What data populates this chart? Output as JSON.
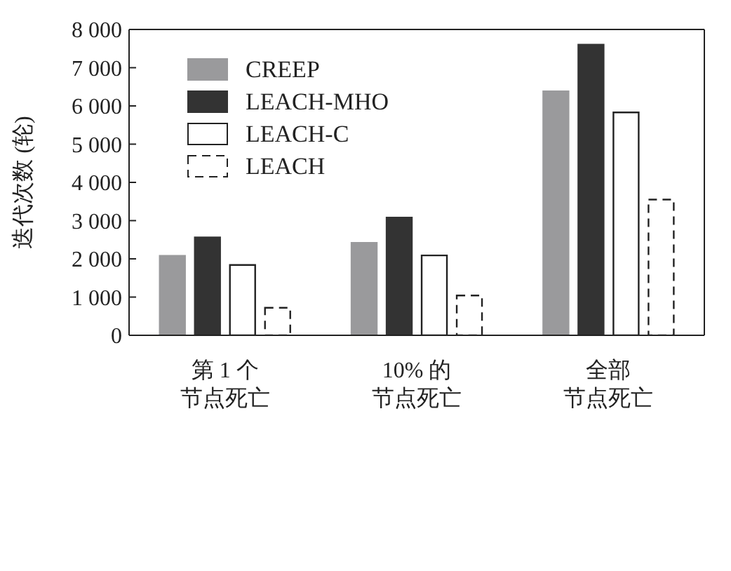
{
  "chart_data": {
    "type": "bar",
    "ylabel": "迭代次数 (轮)",
    "categories": [
      "第 1 个节点死亡",
      "10% 的节点死亡",
      "全部节点死亡"
    ],
    "series": [
      {
        "name": "CREEP",
        "color": "#9a9a9c",
        "values": [
          2080,
          2420,
          6380
        ]
      },
      {
        "name": "LEACH-MHO",
        "color": "#333333",
        "values": [
          2560,
          3080,
          7600
        ]
      },
      {
        "name": "LEACH-C",
        "color": "#ffffff",
        "values": [
          1840,
          2090,
          5830
        ]
      },
      {
        "name": "LEACH",
        "color": "#ffffff",
        "line_style": "dashed",
        "values": [
          720,
          1040,
          3550
        ]
      }
    ],
    "ylim": [
      0,
      8000
    ],
    "yticks": [
      0,
      {
        "value": 1000,
        "label": "1 000"
      },
      {
        "value": 2000,
        "label": "2 000"
      },
      {
        "value": 3000,
        "label": "3 000"
      },
      {
        "value": 4000,
        "label": "4 000"
      },
      {
        "value": 5000,
        "label": "5 000"
      },
      {
        "value": 6000,
        "label": "6 000"
      },
      {
        "value": 7000,
        "label": "7 000"
      },
      {
        "value": 8000,
        "label": "8 000"
      }
    ],
    "grid": false,
    "legend": "top left"
  }
}
